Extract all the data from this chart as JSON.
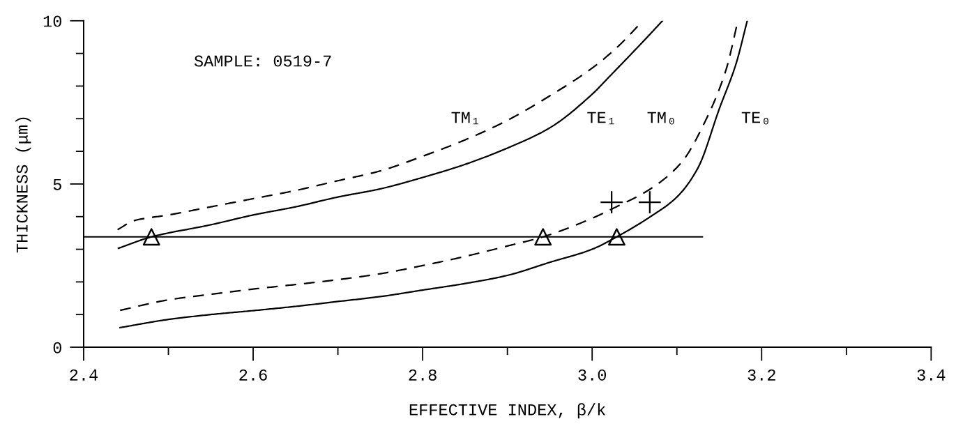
{
  "chart_data": {
    "type": "line",
    "xlabel": "EFFECTIVE INDEX, β/k",
    "ylabel": "THICKNESS (μm)",
    "annotations": [
      "SAMPLE: 0519-7"
    ],
    "xlim": [
      2.4,
      3.4
    ],
    "ylim": [
      0,
      10
    ],
    "xticks": [
      2.4,
      {
        "value": 2.5,
        "label": null
      },
      2.6,
      {
        "value": 2.7,
        "label": null
      },
      2.8,
      {
        "value": 2.9,
        "label": null
      },
      {
        "value": 3.0,
        "label": "3.0"
      },
      {
        "value": 3.1,
        "label": null
      },
      3.2,
      {
        "value": 3.3,
        "label": null
      },
      3.4
    ],
    "yticks": [
      0,
      {
        "value": 1,
        "label": null
      },
      {
        "value": 2,
        "label": null
      },
      {
        "value": 3,
        "label": null
      },
      {
        "value": 4,
        "label": null
      },
      5,
      {
        "value": 6,
        "label": null
      },
      {
        "value": 7,
        "label": null
      },
      {
        "value": 8,
        "label": null
      },
      {
        "value": 9,
        "label": null
      },
      10
    ],
    "grid": false,
    "legend": false,
    "series": [
      {
        "name": "TM₁",
        "color": "#000000",
        "line_style": "dashed",
        "x": [
          2.44,
          2.46,
          2.5,
          2.55,
          2.6,
          2.65,
          2.7,
          2.75,
          2.8,
          2.85,
          2.9,
          2.95,
          3.0,
          3.03,
          3.06
        ],
        "values": [
          3.6,
          3.88,
          4.05,
          4.3,
          4.55,
          4.8,
          5.1,
          5.4,
          5.85,
          6.35,
          6.95,
          7.7,
          8.55,
          9.2,
          10
        ]
      },
      {
        "name": "TE₁",
        "color": "#000000",
        "line_style": "solid",
        "x": [
          2.441,
          2.48,
          2.55,
          2.6,
          2.65,
          2.7,
          2.75,
          2.8,
          2.85,
          2.9,
          2.95,
          3.0,
          3.02,
          3.064,
          3.083
        ],
        "values": [
          3.03,
          3.38,
          3.75,
          4.05,
          4.3,
          4.6,
          4.85,
          5.2,
          5.6,
          6.1,
          6.72,
          7.75,
          8.28,
          9.47,
          10
        ]
      },
      {
        "name": "TM₀",
        "color": "#000000",
        "line_style": "dashed",
        "x": [
          2.443,
          2.5,
          2.55,
          2.6,
          2.65,
          2.7,
          2.75,
          2.8,
          2.85,
          2.9,
          2.942,
          3.0,
          3.023,
          3.07,
          3.106,
          3.133,
          3.158,
          3.172
        ],
        "values": [
          1.13,
          1.45,
          1.62,
          1.78,
          1.92,
          2.07,
          2.25,
          2.5,
          2.78,
          3.1,
          3.38,
          3.95,
          4.23,
          4.87,
          5.68,
          6.9,
          8.5,
          10
        ]
      },
      {
        "name": "TE₀",
        "color": "#000000",
        "line_style": "solid",
        "x": [
          2.443,
          2.5,
          2.55,
          2.6,
          2.65,
          2.7,
          2.75,
          2.8,
          2.85,
          2.9,
          2.95,
          3.0,
          3.029,
          3.07,
          3.1,
          3.125,
          3.15,
          3.17,
          3.183
        ],
        "values": [
          0.6,
          0.85,
          1.0,
          1.12,
          1.25,
          1.4,
          1.55,
          1.75,
          1.95,
          2.2,
          2.6,
          3.0,
          3.38,
          4.02,
          4.6,
          5.5,
          7.3,
          8.7,
          10
        ]
      },
      {
        "color": "#000000",
        "line_style": "solid",
        "x": [
          2.4,
          3.13
        ],
        "values": [
          3.38,
          3.38
        ]
      },
      {
        "type": "scatter",
        "color": "#000000",
        "marker": "triangle",
        "x": [
          2.48,
          2.942,
          3.029
        ],
        "values": [
          3.38,
          3.38,
          3.38
        ]
      },
      {
        "type": "scatter",
        "color": "#000000",
        "marker": "cross",
        "x": [
          3.023,
          3.068
        ],
        "values": [
          4.44,
          4.44
        ]
      }
    ]
  }
}
